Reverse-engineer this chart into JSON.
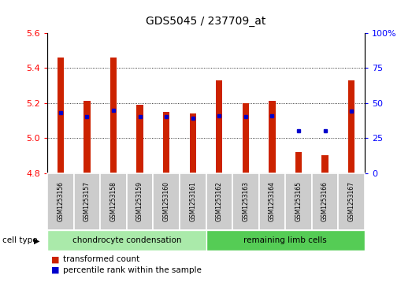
{
  "title": "GDS5045 / 237709_at",
  "samples": [
    "GSM1253156",
    "GSM1253157",
    "GSM1253158",
    "GSM1253159",
    "GSM1253160",
    "GSM1253161",
    "GSM1253162",
    "GSM1253163",
    "GSM1253164",
    "GSM1253165",
    "GSM1253166",
    "GSM1253167"
  ],
  "transformed_count": [
    5.46,
    5.21,
    5.46,
    5.19,
    5.15,
    5.14,
    5.33,
    5.2,
    5.21,
    4.92,
    4.9,
    5.33
  ],
  "percentile_rank": [
    43,
    40,
    45,
    40,
    40,
    39,
    41,
    40,
    41,
    30,
    30,
    44
  ],
  "bar_color": "#cc2200",
  "dot_color": "#0000cc",
  "ylim_left": [
    4.8,
    5.6
  ],
  "ylim_right": [
    0,
    100
  ],
  "yticks_left": [
    4.8,
    5.0,
    5.2,
    5.4,
    5.6
  ],
  "yticks_right": [
    0,
    25,
    50,
    75,
    100
  ],
  "ytick_labels_right": [
    "0",
    "25",
    "50",
    "75",
    "100%"
  ],
  "group1_label": "chondrocyte condensation",
  "group2_label": "remaining limb cells",
  "group1_count": 6,
  "group2_count": 6,
  "cell_type_label": "cell type",
  "legend1": "transformed count",
  "legend2": "percentile rank within the sample",
  "bar_width": 0.25,
  "plot_bg": "#ffffff",
  "cell_row_bg": "#cccccc",
  "group1_bg": "#aaeaaa",
  "group2_bg": "#55cc55"
}
